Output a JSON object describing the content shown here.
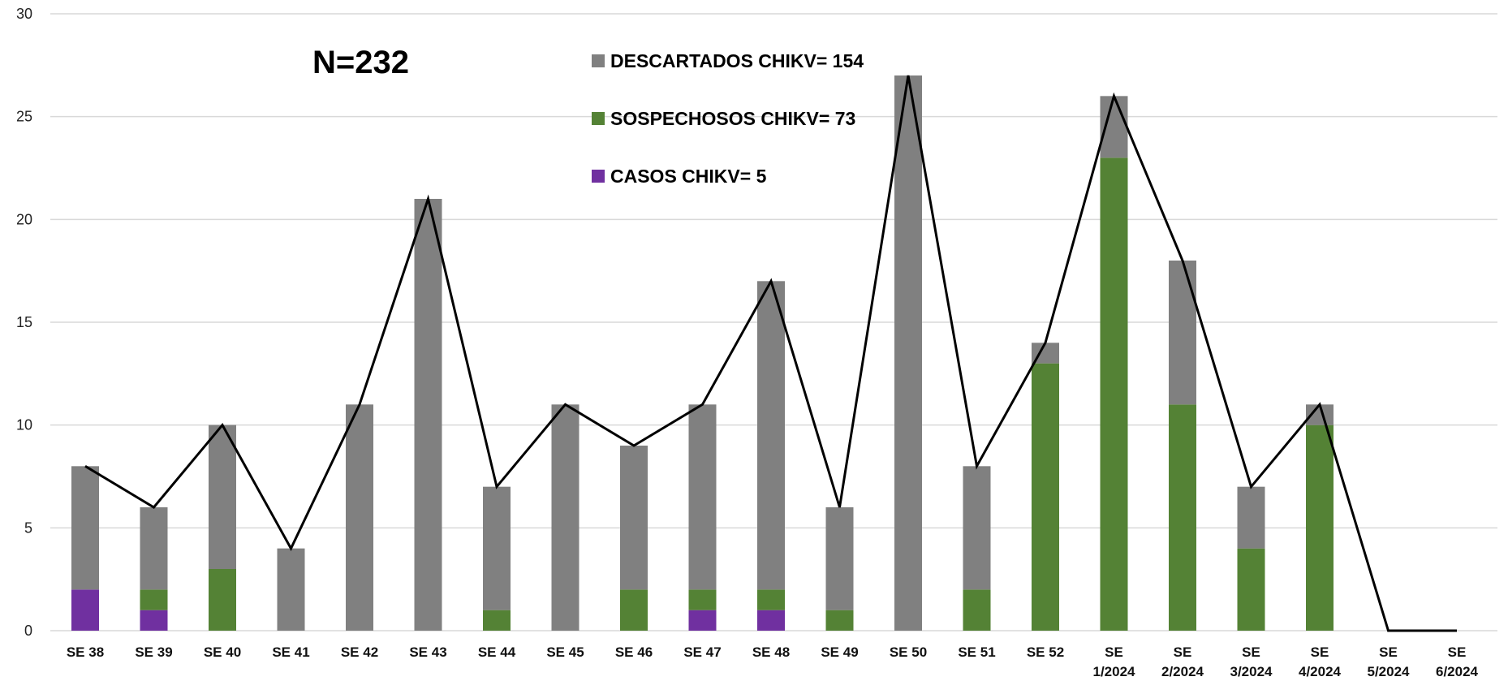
{
  "chart_data": {
    "type": "bar",
    "stacked": true,
    "annotation": "N=232",
    "categories": [
      [
        "SE 38"
      ],
      [
        "SE 39"
      ],
      [
        "SE 40"
      ],
      [
        "SE 41"
      ],
      [
        "SE 42"
      ],
      [
        "SE 43"
      ],
      [
        "SE 44"
      ],
      [
        "SE 45"
      ],
      [
        "SE 46"
      ],
      [
        "SE 47"
      ],
      [
        "SE 48"
      ],
      [
        "SE 49"
      ],
      [
        "SE 50"
      ],
      [
        "SE 51"
      ],
      [
        "SE 52"
      ],
      [
        "SE",
        "1/2024"
      ],
      [
        "SE",
        "2/2024"
      ],
      [
        "SE",
        "3/2024"
      ],
      [
        "SE",
        "4/2024"
      ],
      [
        "SE",
        "5/2024"
      ],
      [
        "SE",
        "6/2024"
      ]
    ],
    "series": [
      {
        "name": "CASOS CHIKV= 5",
        "color": "#7030A0",
        "values": [
          2,
          1,
          0,
          0,
          0,
          0,
          0,
          0,
          0,
          1,
          1,
          0,
          0,
          0,
          0,
          0,
          0,
          0,
          0,
          0,
          0
        ]
      },
      {
        "name": "SOSPECHOSOS CHIKV= 73",
        "color": "#548235",
        "values": [
          0,
          1,
          3,
          0,
          0,
          0,
          1,
          0,
          2,
          1,
          1,
          1,
          0,
          2,
          13,
          23,
          11,
          4,
          10,
          0,
          0
        ]
      },
      {
        "name": "DESCARTADOS CHIKV= 154",
        "color": "#808080",
        "values": [
          6,
          4,
          7,
          4,
          11,
          21,
          6,
          11,
          7,
          9,
          15,
          5,
          27,
          6,
          1,
          3,
          7,
          3,
          1,
          0,
          0
        ]
      }
    ],
    "line": {
      "color": "#000000",
      "values": [
        8,
        6,
        10,
        4,
        11,
        21,
        7,
        11,
        9,
        11,
        17,
        6,
        27,
        8,
        14,
        26,
        18,
        7,
        11,
        0,
        0
      ]
    },
    "legend_order": [
      2,
      1,
      0
    ],
    "legend_position": "top-center",
    "ylim": [
      0,
      30
    ],
    "yticks": [
      0,
      5,
      10,
      15,
      20,
      25,
      30
    ],
    "grid": true
  }
}
